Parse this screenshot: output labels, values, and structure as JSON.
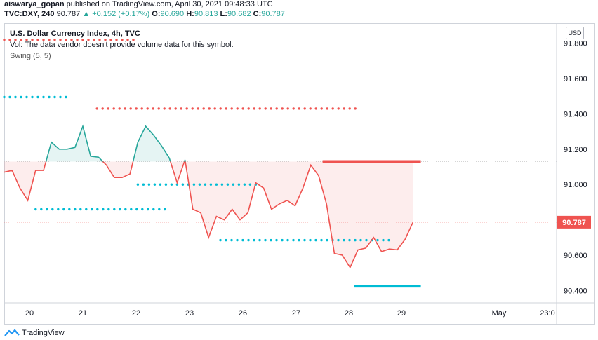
{
  "header": {
    "line1_user": "aiswarya_gopan",
    "line1_rest": " published on TradingView.com, April 30, 2021 09:48:33 UTC",
    "symbol": "TVC:DXY, 240",
    "last": "90.787",
    "change": "▲ +0.152 (+0.17%)",
    "o_label": "O:",
    "o_value": "90.690",
    "h_label": "H:",
    "h_value": "90.813",
    "l_label": "L:",
    "l_value": "90.682",
    "c_label": "C:",
    "c_value": "90.787"
  },
  "legend": {
    "title": "U.S. Dollar Currency Index, 4h, TVC",
    "vol": "Vol: The data vendor doesn't provide volume data for this symbol.",
    "swing": "Swing (5, 5)"
  },
  "currency_button": "USD",
  "footer": {
    "brand": "TradingView"
  },
  "colors": {
    "up": "#26a69a",
    "down": "#ef5350",
    "cyan": "#00bcd4",
    "label_bg": "#ef5350"
  },
  "chart_data": {
    "type": "line",
    "title": "U.S. Dollar Currency Index, 4h, TVC",
    "y_ticks": [
      "91.800",
      "91.600",
      "91.400",
      "91.200",
      "91.000",
      "90.600",
      "90.400"
    ],
    "ylim": [
      90.33,
      91.91
    ],
    "x_ticks": [
      "20",
      "21",
      "22",
      "23",
      "26",
      "27",
      "28",
      "29",
      "May",
      "23:0"
    ],
    "last_price_label": "90.787",
    "baseline": 91.13,
    "series": [
      {
        "x": [
          0,
          1,
          2,
          3,
          4,
          5,
          6,
          7,
          8,
          9,
          10,
          11,
          12,
          13,
          14,
          15,
          16,
          17,
          18,
          19,
          20,
          21,
          22,
          23,
          24,
          25,
          26,
          27,
          28,
          29,
          30,
          31,
          32,
          33,
          34,
          35,
          36,
          37,
          38,
          39,
          40,
          41,
          42,
          43,
          44,
          45,
          46,
          47,
          48,
          49,
          50,
          51,
          52,
          53,
          54,
          55,
          56,
          57
        ],
        "values": [
          91.07,
          91.08,
          90.98,
          90.91,
          91.08,
          91.08,
          91.24,
          91.2,
          91.2,
          91.21,
          91.33,
          91.16,
          91.155,
          91.11,
          91.04,
          91.04,
          91.06,
          91.24,
          91.33,
          91.28,
          91.22,
          91.15,
          91.01,
          91.14,
          90.86,
          90.84,
          90.7,
          90.82,
          90.8,
          90.86,
          90.8,
          90.84,
          91.01,
          90.98,
          90.86,
          90.89,
          90.91,
          90.88,
          90.98,
          91.11,
          91.05,
          90.89,
          90.61,
          90.6,
          90.53,
          90.63,
          90.64,
          90.7,
          90.62,
          90.635,
          90.63,
          90.69,
          90.787,
          90.787,
          90.787,
          90.787,
          90.787,
          90.787
        ]
      }
    ],
    "swing_levels": [
      {
        "color": "red",
        "value": 91.82,
        "x_from": 0,
        "x_to": 16.5,
        "style": "dots"
      },
      {
        "color": "cyan",
        "value": 91.495,
        "x_from": 0,
        "x_to": 8.5,
        "style": "dots"
      },
      {
        "color": "red",
        "value": 91.43,
        "x_from": 11.8,
        "x_to": 45,
        "style": "dots"
      },
      {
        "color": "cyan",
        "value": 91.0,
        "x_from": 17,
        "x_to": 32,
        "style": "dots"
      },
      {
        "color": "cyan",
        "value": 90.86,
        "x_from": 4,
        "x_to": 21,
        "style": "dots"
      },
      {
        "color": "cyan",
        "value": 90.685,
        "x_from": 27.5,
        "x_to": 49,
        "style": "dots"
      },
      {
        "color": "red",
        "value": 91.13,
        "x_from": 40.5,
        "x_to": 53,
        "style": "solid"
      },
      {
        "color": "cyan",
        "value": 90.425,
        "x_from": 44.5,
        "x_to": 53,
        "style": "solid"
      }
    ]
  }
}
